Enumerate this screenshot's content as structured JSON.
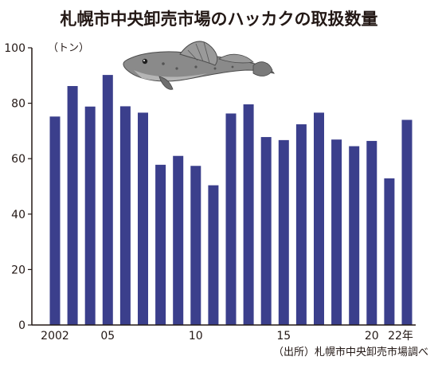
{
  "chart_data": {
    "type": "bar",
    "title": "札幌市中央卸売市場のハッカクの取扱数量",
    "unit_label": "（トン）",
    "source": "（出所）札幌市中央卸売市場調べ",
    "categories": [
      2002,
      2003,
      2004,
      2005,
      2006,
      2007,
      2008,
      2009,
      2010,
      2011,
      2012,
      2013,
      2014,
      2015,
      2016,
      2017,
      2018,
      2019,
      2020,
      2021,
      2022
    ],
    "x_tick_labels": [
      {
        "year": 2002,
        "label": "2002"
      },
      {
        "year": 2005,
        "label": "05"
      },
      {
        "year": 2010,
        "label": "10"
      },
      {
        "year": 2015,
        "label": "15"
      },
      {
        "year": 2020,
        "label": "20"
      },
      {
        "year": 2022,
        "label": "22年"
      }
    ],
    "values": [
      75.2,
      86.2,
      78.8,
      90.2,
      78.9,
      76.6,
      57.8,
      61.0,
      57.4,
      50.4,
      76.3,
      79.6,
      67.8,
      66.7,
      72.4,
      76.6,
      66.9,
      64.5,
      66.4,
      52.9,
      74.0
    ],
    "ylim": [
      0,
      100
    ],
    "y_ticks": [
      0,
      20,
      40,
      60,
      80,
      100
    ],
    "grid": false,
    "bar_color": "#3b3f8c",
    "text_color": "#231815",
    "axis_color": "#231815",
    "illustration": "hakkaku-fish"
  }
}
